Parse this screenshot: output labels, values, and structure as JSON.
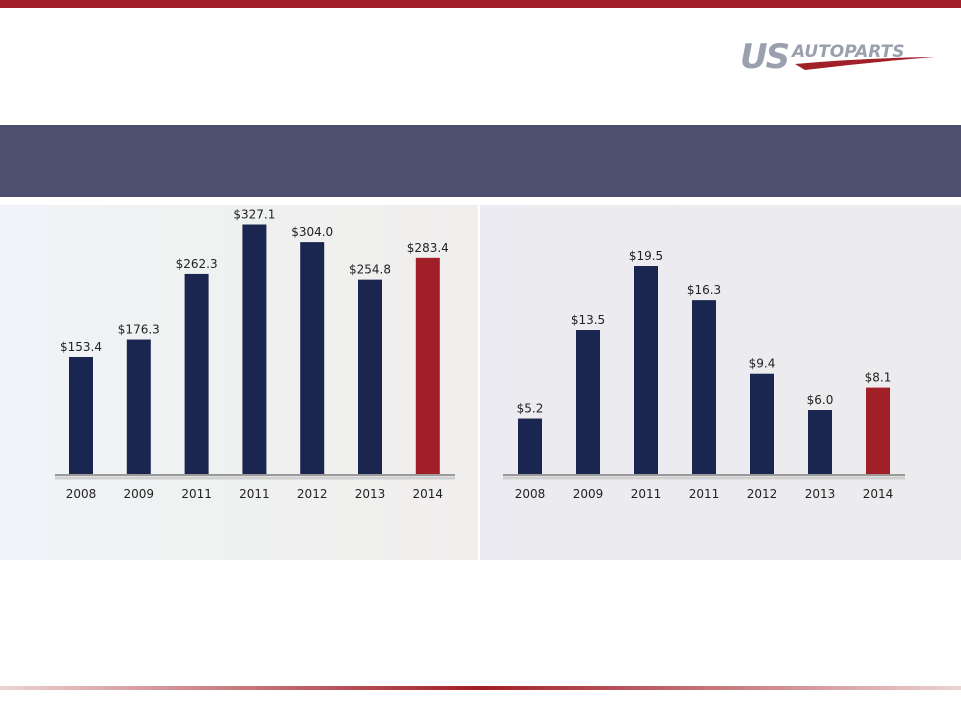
{
  "logo": {
    "mark": "US",
    "name": "AUTOPARTS"
  },
  "chart_data": [
    {
      "type": "bar",
      "categories": [
        "2008",
        "2009",
        "2011",
        "2011",
        "2012",
        "2013",
        "2014"
      ],
      "values": [
        153.4,
        176.3,
        262.3,
        327.1,
        304.0,
        254.8,
        283.4
      ],
      "value_labels": [
        "$153.4",
        "$176.3",
        "$262.3",
        "$327.1",
        "$304.0",
        "$254.8",
        "$283.4"
      ],
      "colors": [
        "#1b2650",
        "#1b2650",
        "#1b2650",
        "#1b2650",
        "#1b2650",
        "#1b2650",
        "#a11f26"
      ]
    },
    {
      "type": "bar",
      "categories": [
        "2008",
        "2009",
        "2011",
        "2011",
        "2012",
        "2013",
        "2014"
      ],
      "values": [
        5.2,
        13.5,
        19.5,
        16.3,
        9.4,
        6.0,
        8.1
      ],
      "value_labels": [
        "$5.2",
        "$13.5",
        "$19.5",
        "$16.3",
        "$9.4",
        "$6.0",
        "$8.1"
      ],
      "colors": [
        "#1b2650",
        "#1b2650",
        "#1b2650",
        "#1b2650",
        "#1b2650",
        "#1b2650",
        "#a11f26"
      ]
    }
  ]
}
